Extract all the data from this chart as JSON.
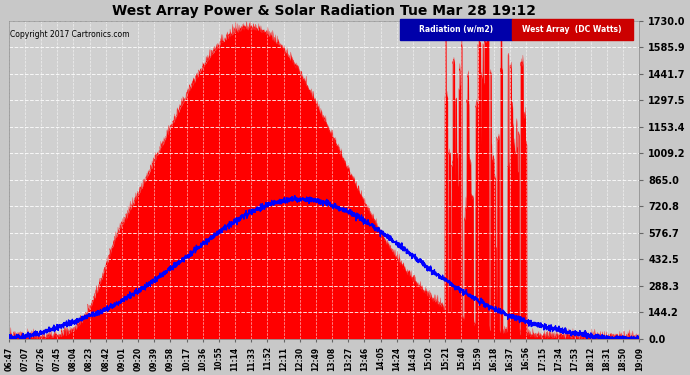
{
  "title": "West Array Power & Solar Radiation Tue Mar 28 19:12",
  "copyright": "Copyright 2017 Cartronics.com",
  "yticks": [
    0.0,
    144.2,
    288.3,
    432.5,
    576.7,
    720.8,
    865.0,
    1009.2,
    1153.4,
    1297.5,
    1441.7,
    1585.9,
    1730.0
  ],
  "ylim": [
    0.0,
    1730.0
  ],
  "background_color": "#c8c8c8",
  "plot_bg_color": "#d0d0d0",
  "grid_color": "#ffffff",
  "title_color": "#000000",
  "legend_blue_label": "Radiation (w/m2)",
  "legend_red_label": "West Array  (DC Watts)",
  "legend_bg": "#000080",
  "legend_red_bg": "#cc0000",
  "red_color": "#ff0000",
  "blue_color": "#0000ff",
  "x_labels": [
    "06:47",
    "07:07",
    "07:26",
    "07:45",
    "08:04",
    "08:23",
    "08:42",
    "09:01",
    "09:20",
    "09:39",
    "09:58",
    "10:17",
    "10:36",
    "10:55",
    "11:14",
    "11:33",
    "11:52",
    "12:11",
    "12:30",
    "12:49",
    "13:08",
    "13:27",
    "13:46",
    "14:05",
    "14:24",
    "14:43",
    "15:02",
    "15:21",
    "15:40",
    "15:59",
    "16:18",
    "16:37",
    "16:56",
    "17:15",
    "17:34",
    "17:53",
    "18:12",
    "18:31",
    "18:50",
    "19:09"
  ]
}
